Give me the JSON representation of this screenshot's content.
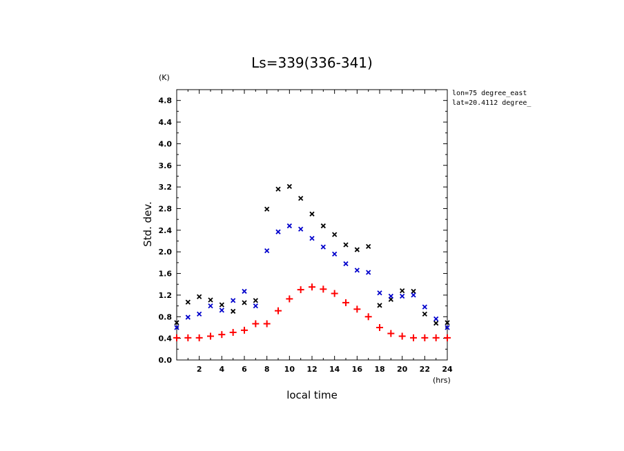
{
  "chart_data": {
    "type": "scatter",
    "title": "Ls=339(336-341)",
    "xlabel": "local time",
    "ylabel": "Std. dev.",
    "x_unit": "(hrs)",
    "y_unit": "(K)",
    "xlim": [
      0,
      24
    ],
    "ylim": [
      0,
      5.0
    ],
    "xticks": [
      2,
      4,
      6,
      8,
      10,
      12,
      14,
      16,
      18,
      20,
      22,
      24
    ],
    "yticks": [
      0.0,
      0.4,
      0.8,
      1.2,
      1.6,
      2.0,
      2.4,
      2.8,
      3.2,
      3.6,
      4.0,
      4.4,
      4.8
    ],
    "yticklabels": [
      "0.0",
      "0.4",
      "0.8",
      "1.2",
      "1.6",
      "2.0",
      "2.4",
      "2.8",
      "3.2",
      "3.6",
      "4.0",
      "4.4",
      "4.8"
    ],
    "grid": false,
    "annotations": [
      "lon=75 degree_east",
      "lat=20.4112 degree_"
    ],
    "series": [
      {
        "marker": "x",
        "color": "#000000",
        "x": [
          0,
          1,
          2,
          3,
          4,
          5,
          6,
          7,
          8,
          9,
          10,
          11,
          12,
          13,
          14,
          15,
          16,
          17,
          18,
          19,
          20,
          21,
          22,
          23,
          24
        ],
        "y": [
          0.69,
          1.07,
          1.17,
          1.11,
          1.02,
          0.9,
          1.06,
          1.1,
          2.79,
          3.16,
          3.21,
          2.99,
          2.7,
          2.48,
          2.32,
          2.13,
          2.04,
          2.1,
          1.01,
          1.12,
          1.28,
          1.27,
          0.85,
          0.68,
          0.69
        ]
      },
      {
        "marker": "x",
        "color": "#0000cc",
        "x": [
          0,
          1,
          2,
          3,
          4,
          5,
          6,
          7,
          8,
          9,
          10,
          11,
          12,
          13,
          14,
          15,
          16,
          17,
          18,
          19,
          20,
          21,
          22,
          23,
          24
        ],
        "y": [
          0.6,
          0.79,
          0.85,
          1.0,
          0.92,
          1.1,
          1.27,
          1.0,
          2.02,
          2.37,
          2.48,
          2.42,
          2.25,
          2.09,
          1.96,
          1.78,
          1.66,
          1.62,
          1.24,
          1.18,
          1.18,
          1.2,
          0.98,
          0.76,
          0.6
        ]
      },
      {
        "marker": "+",
        "color": "#ff0000",
        "x": [
          0,
          1,
          2,
          3,
          4,
          5,
          6,
          7,
          8,
          9,
          10,
          11,
          12,
          13,
          14,
          15,
          16,
          17,
          18,
          19,
          20,
          21,
          22,
          23,
          24
        ],
        "y": [
          0.41,
          0.41,
          0.41,
          0.44,
          0.47,
          0.51,
          0.55,
          0.67,
          0.67,
          0.91,
          1.13,
          1.3,
          1.35,
          1.31,
          1.23,
          1.06,
          0.94,
          0.8,
          0.6,
          0.49,
          0.44,
          0.41,
          0.41,
          0.41,
          0.41
        ]
      }
    ]
  }
}
